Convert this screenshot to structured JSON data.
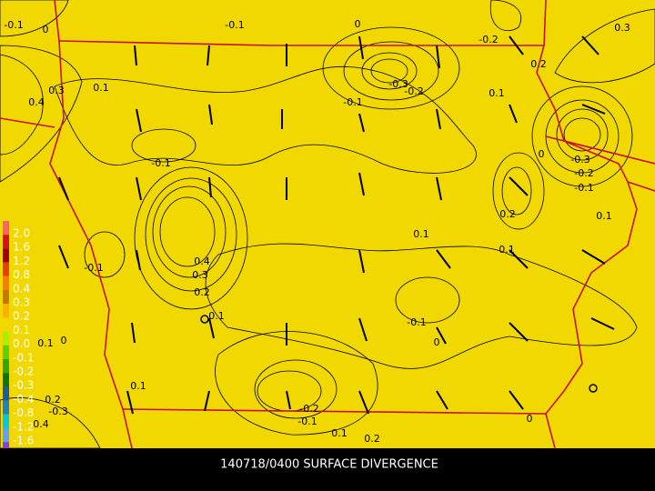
{
  "title": "140718/0400 SURFACE DIVERGENCE",
  "legend": [
    {
      "label": "2.0",
      "color": "#ff6070"
    },
    {
      "label": "1.6",
      "color": "#d81010"
    },
    {
      "label": "1.2",
      "color": "#a00000"
    },
    {
      "label": "0.8",
      "color": "#e84000"
    },
    {
      "label": "0.4",
      "color": "#ff7a00"
    },
    {
      "label": "0.3",
      "color": "#c87800"
    },
    {
      "label": "0.2",
      "color": "#ffb000"
    },
    {
      "label": "0.1",
      "color": "#f0d800"
    },
    {
      "label": "0.0",
      "color": "#a8f000"
    },
    {
      "label": "-0.1",
      "color": "#60d000"
    },
    {
      "label": "-0.2",
      "color": "#30a800"
    },
    {
      "label": "-0.3",
      "color": "#087800"
    },
    {
      "label": "-0.4",
      "color": "#1c5c98"
    },
    {
      "label": "-0.8",
      "color": "#2080c8"
    },
    {
      "label": "-1.2",
      "color": "#00c8e0"
    },
    {
      "label": "-1.6",
      "color": "#60a0ff"
    },
    {
      "label": "-2.0",
      "color": "#8040e0"
    }
  ],
  "contour_labels": [
    "-0.1",
    "0",
    "-0.1",
    "0",
    "-0.2",
    "0.3",
    "0.2",
    "0.3",
    "0.4",
    "0.1",
    "-0.3",
    "-0.2",
    "0.1",
    "-0.1",
    "0",
    "-0.3",
    "-0.2",
    "-0.1",
    "-0.1",
    "0.2",
    "0.1",
    "0.1",
    "0.1",
    "-0.1",
    "0.4",
    "0.3",
    "0.2",
    "0.1",
    "-0.1",
    "0",
    "0.1",
    "0",
    "0.1",
    "0.2",
    "-0.3",
    "0.4",
    "-0.2",
    "-0.1",
    "0",
    "0.1",
    "0.2"
  ]
}
